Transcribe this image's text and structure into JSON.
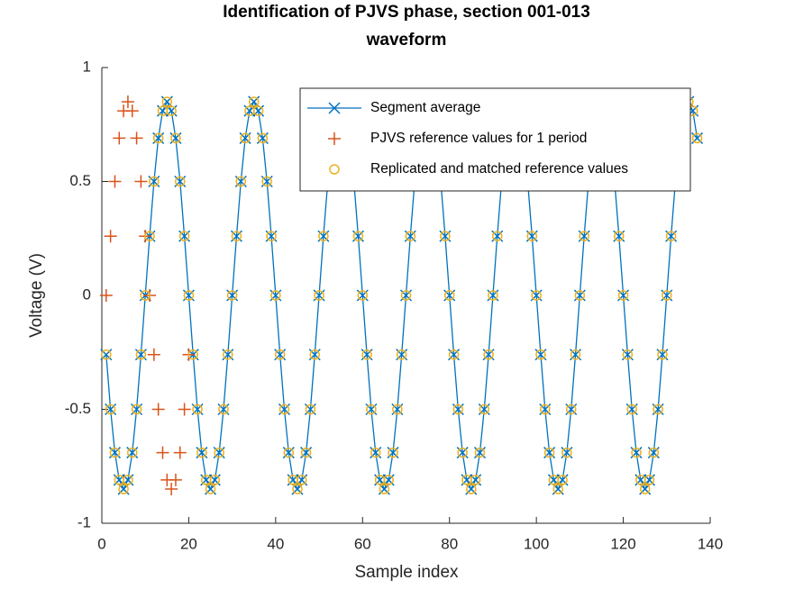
{
  "chart_data": {
    "type": "line",
    "title": [
      "Identification of PJVS phase, section 001-013",
      "waveform"
    ],
    "x_label": "Sample index",
    "y_label": "Voltage (V)",
    "xlim": [
      0,
      140
    ],
    "xticks": [
      0,
      20,
      40,
      60,
      80,
      100,
      120,
      140
    ],
    "ylim": [
      -1,
      1
    ],
    "yticks": [
      -1,
      -0.5,
      0,
      0.5,
      1
    ],
    "legend": "top-right",
    "series": [
      {
        "name": "Segment average",
        "color": "#0072bd",
        "marker": "x",
        "line": true,
        "x": [
          1,
          2,
          3,
          4,
          5,
          6,
          7,
          8,
          9,
          10,
          11,
          12,
          13,
          14,
          15,
          16,
          17,
          18,
          19,
          20,
          21,
          22,
          23,
          24,
          25,
          26,
          27,
          28,
          29,
          30,
          31,
          32,
          33,
          34,
          35,
          36,
          37,
          38,
          39,
          40,
          41,
          42,
          43,
          44,
          45,
          46,
          47,
          48,
          49,
          50,
          51,
          52,
          53,
          54,
          55,
          56,
          57,
          58,
          59,
          60,
          61,
          62,
          63,
          64,
          65,
          66,
          67,
          68,
          69,
          70,
          71,
          72,
          73,
          74,
          75,
          76,
          77,
          78,
          79,
          80,
          81,
          82,
          83,
          84,
          85,
          86,
          87,
          88,
          89,
          90,
          91,
          92,
          93,
          94,
          95,
          96,
          97,
          98,
          99,
          100,
          101,
          102,
          103,
          104,
          105,
          106,
          107,
          108,
          109,
          110,
          111,
          112,
          113,
          114,
          115,
          116,
          117,
          118,
          119,
          120,
          121,
          122,
          123,
          124,
          125,
          126,
          127,
          128,
          129,
          130,
          131,
          132,
          133,
          134,
          135,
          136,
          137
        ],
        "values": [
          -0.26,
          -0.5,
          -0.69,
          -0.81,
          -0.85,
          -0.81,
          -0.69,
          -0.5,
          -0.26,
          0,
          0.26,
          0.5,
          0.69,
          0.81,
          0.85,
          0.81,
          0.69,
          0.5,
          0.26,
          0,
          -0.26,
          -0.5,
          -0.69,
          -0.81,
          -0.85,
          -0.81,
          -0.69,
          -0.5,
          -0.26,
          0,
          0.26,
          0.5,
          0.69,
          0.81,
          0.85,
          0.81,
          0.69,
          0.5,
          0.26,
          0,
          -0.26,
          -0.5,
          -0.69,
          -0.81,
          -0.85,
          -0.81,
          -0.69,
          -0.5,
          -0.26,
          0,
          0.26,
          0.5,
          0.69,
          0.81,
          0.85,
          0.81,
          0.69,
          0.5,
          0.26,
          0,
          -0.26,
          -0.5,
          -0.69,
          -0.81,
          -0.85,
          -0.81,
          -0.69,
          -0.5,
          -0.26,
          0,
          0.26,
          0.5,
          0.69,
          0.81,
          0.85,
          0.81,
          0.69,
          0.5,
          0.26,
          0,
          -0.26,
          -0.5,
          -0.69,
          -0.81,
          -0.85,
          -0.81,
          -0.69,
          -0.5,
          -0.26,
          0,
          0.26,
          0.5,
          0.69,
          0.81,
          0.85,
          0.81,
          0.69,
          0.5,
          0.26,
          0,
          -0.26,
          -0.5,
          -0.69,
          -0.81,
          -0.85,
          -0.81,
          -0.69,
          -0.5,
          -0.26,
          0,
          0.26,
          0.5,
          0.69,
          0.81,
          0.85,
          0.81,
          0.69,
          0.5,
          0.26,
          0,
          -0.26,
          -0.5,
          -0.69,
          -0.81,
          -0.85,
          -0.81,
          -0.69,
          -0.5,
          -0.26,
          0,
          0.26,
          0.5,
          0.69,
          0.81,
          0.85,
          0.81,
          0.69
        ]
      },
      {
        "name": "PJVS reference values for 1 period",
        "color": "#d95319",
        "marker": "+",
        "line": false,
        "x": [
          1,
          2,
          3,
          4,
          5,
          6,
          7,
          8,
          9,
          10,
          11,
          12,
          13,
          14,
          15,
          16,
          17,
          18,
          19,
          20
        ],
        "values": [
          0,
          0.26,
          0.5,
          0.69,
          0.81,
          0.85,
          0.81,
          0.69,
          0.5,
          0.26,
          0,
          -0.26,
          -0.5,
          -0.69,
          -0.81,
          -0.85,
          -0.81,
          -0.69,
          -0.5,
          -0.26
        ]
      },
      {
        "name": "Replicated and matched reference values",
        "color": "#edb120",
        "marker": "o",
        "line": false,
        "x": [
          1,
          2,
          3,
          4,
          5,
          6,
          7,
          8,
          9,
          10,
          11,
          12,
          13,
          14,
          15,
          16,
          17,
          18,
          19,
          20,
          21,
          22,
          23,
          24,
          25,
          26,
          27,
          28,
          29,
          30,
          31,
          32,
          33,
          34,
          35,
          36,
          37,
          38,
          39,
          40,
          41,
          42,
          43,
          44,
          45,
          46,
          47,
          48,
          49,
          50,
          51,
          52,
          53,
          54,
          55,
          56,
          57,
          58,
          59,
          60,
          61,
          62,
          63,
          64,
          65,
          66,
          67,
          68,
          69,
          70,
          71,
          72,
          73,
          74,
          75,
          76,
          77,
          78,
          79,
          80,
          81,
          82,
          83,
          84,
          85,
          86,
          87,
          88,
          89,
          90,
          91,
          92,
          93,
          94,
          95,
          96,
          97,
          98,
          99,
          100,
          101,
          102,
          103,
          104,
          105,
          106,
          107,
          108,
          109,
          110,
          111,
          112,
          113,
          114,
          115,
          116,
          117,
          118,
          119,
          120,
          121,
          122,
          123,
          124,
          125,
          126,
          127,
          128,
          129,
          130,
          131,
          132,
          133,
          134,
          135,
          136,
          137
        ],
        "values": [
          -0.26,
          -0.5,
          -0.69,
          -0.81,
          -0.85,
          -0.81,
          -0.69,
          -0.5,
          -0.26,
          0,
          0.26,
          0.5,
          0.69,
          0.81,
          0.85,
          0.81,
          0.69,
          0.5,
          0.26,
          0,
          -0.26,
          -0.5,
          -0.69,
          -0.81,
          -0.85,
          -0.81,
          -0.69,
          -0.5,
          -0.26,
          0,
          0.26,
          0.5,
          0.69,
          0.81,
          0.85,
          0.81,
          0.69,
          0.5,
          0.26,
          0,
          -0.26,
          -0.5,
          -0.69,
          -0.81,
          -0.85,
          -0.81,
          -0.69,
          -0.5,
          -0.26,
          0,
          0.26,
          0.5,
          0.69,
          0.81,
          0.85,
          0.81,
          0.69,
          0.5,
          0.26,
          0,
          -0.26,
          -0.5,
          -0.69,
          -0.81,
          -0.85,
          -0.81,
          -0.69,
          -0.5,
          -0.26,
          0,
          0.26,
          0.5,
          0.69,
          0.81,
          0.85,
          0.81,
          0.69,
          0.5,
          0.26,
          0,
          -0.26,
          -0.5,
          -0.69,
          -0.81,
          -0.85,
          -0.81,
          -0.69,
          -0.5,
          -0.26,
          0,
          0.26,
          0.5,
          0.69,
          0.81,
          0.85,
          0.81,
          0.69,
          0.5,
          0.26,
          0,
          -0.26,
          -0.5,
          -0.69,
          -0.81,
          -0.85,
          -0.81,
          -0.69,
          -0.5,
          -0.26,
          0,
          0.26,
          0.5,
          0.69,
          0.81,
          0.85,
          0.81,
          0.69,
          0.5,
          0.26,
          0,
          -0.26,
          -0.5,
          -0.69,
          -0.81,
          -0.85,
          -0.81,
          -0.69,
          -0.5,
          -0.26,
          0,
          0.26,
          0.5,
          0.69,
          0.81,
          0.85,
          0.81,
          0.69
        ]
      }
    ]
  }
}
